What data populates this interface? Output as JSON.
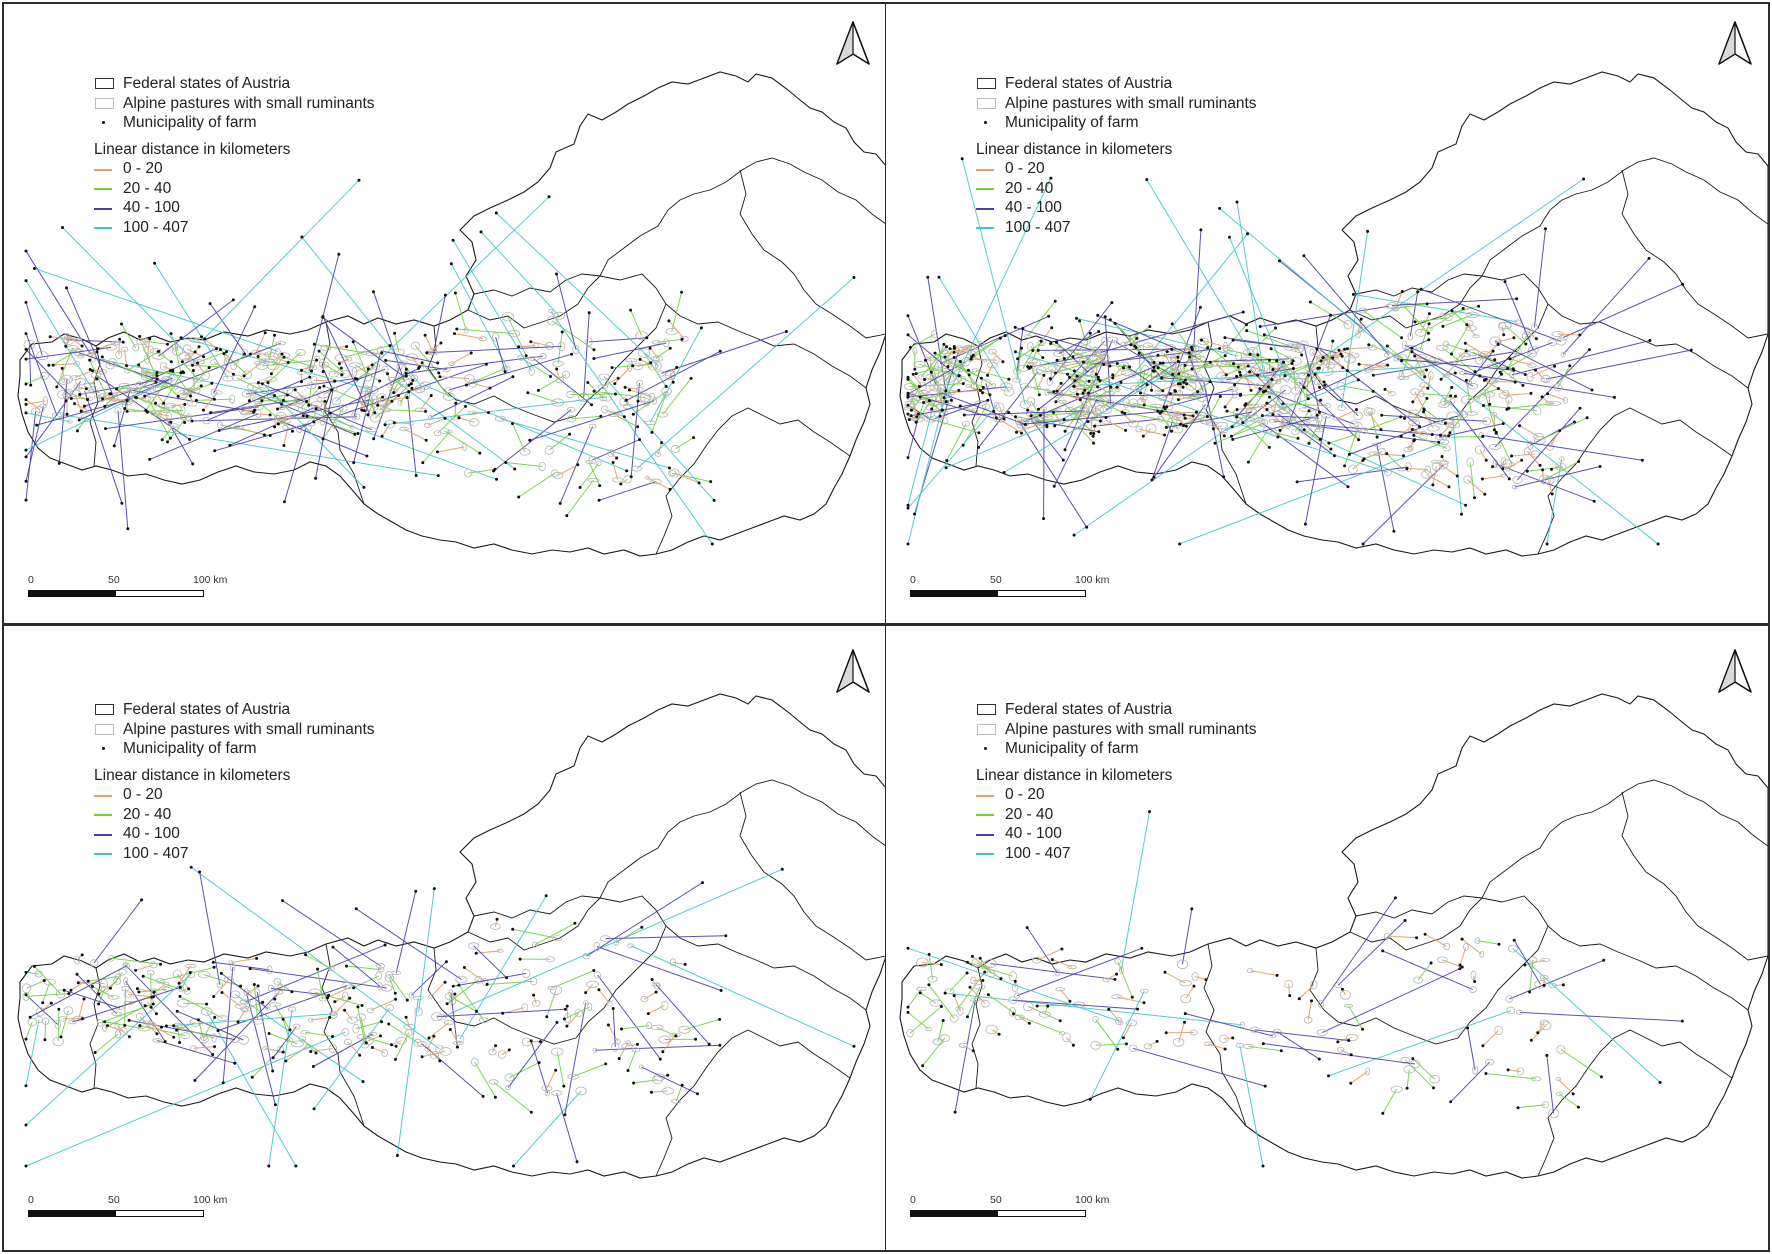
{
  "legend": {
    "states": "Federal states of Austria",
    "pastures": "Alpine pastures with small ruminants",
    "municipality": "Municipality of farm",
    "heading": "Linear distance in kilometers",
    "classes": [
      {
        "label": "0 - 20",
        "color": "#e0a56a"
      },
      {
        "label": "20 - 40",
        "color": "#6fd13d"
      },
      {
        "label": "40 - 100",
        "color": "#4a3fa8"
      },
      {
        "label": "100 - 407",
        "color": "#3fc6cf"
      }
    ]
  },
  "scale": {
    "t0": "0",
    "t50": "50",
    "t100": "100 km"
  },
  "colors": {
    "border": "#2b2b2b",
    "state_outline": "#1a1a1a",
    "pasture": "#b5b5b5",
    "point": "#111111"
  },
  "icons": {
    "north_arrow": "north-arrow-icon"
  },
  "panels": [
    {
      "id": "top-left",
      "density": "high"
    },
    {
      "id": "top-right",
      "density": "very-high"
    },
    {
      "id": "bottom-left",
      "density": "medium"
    },
    {
      "id": "bottom-right",
      "density": "low"
    }
  ]
}
